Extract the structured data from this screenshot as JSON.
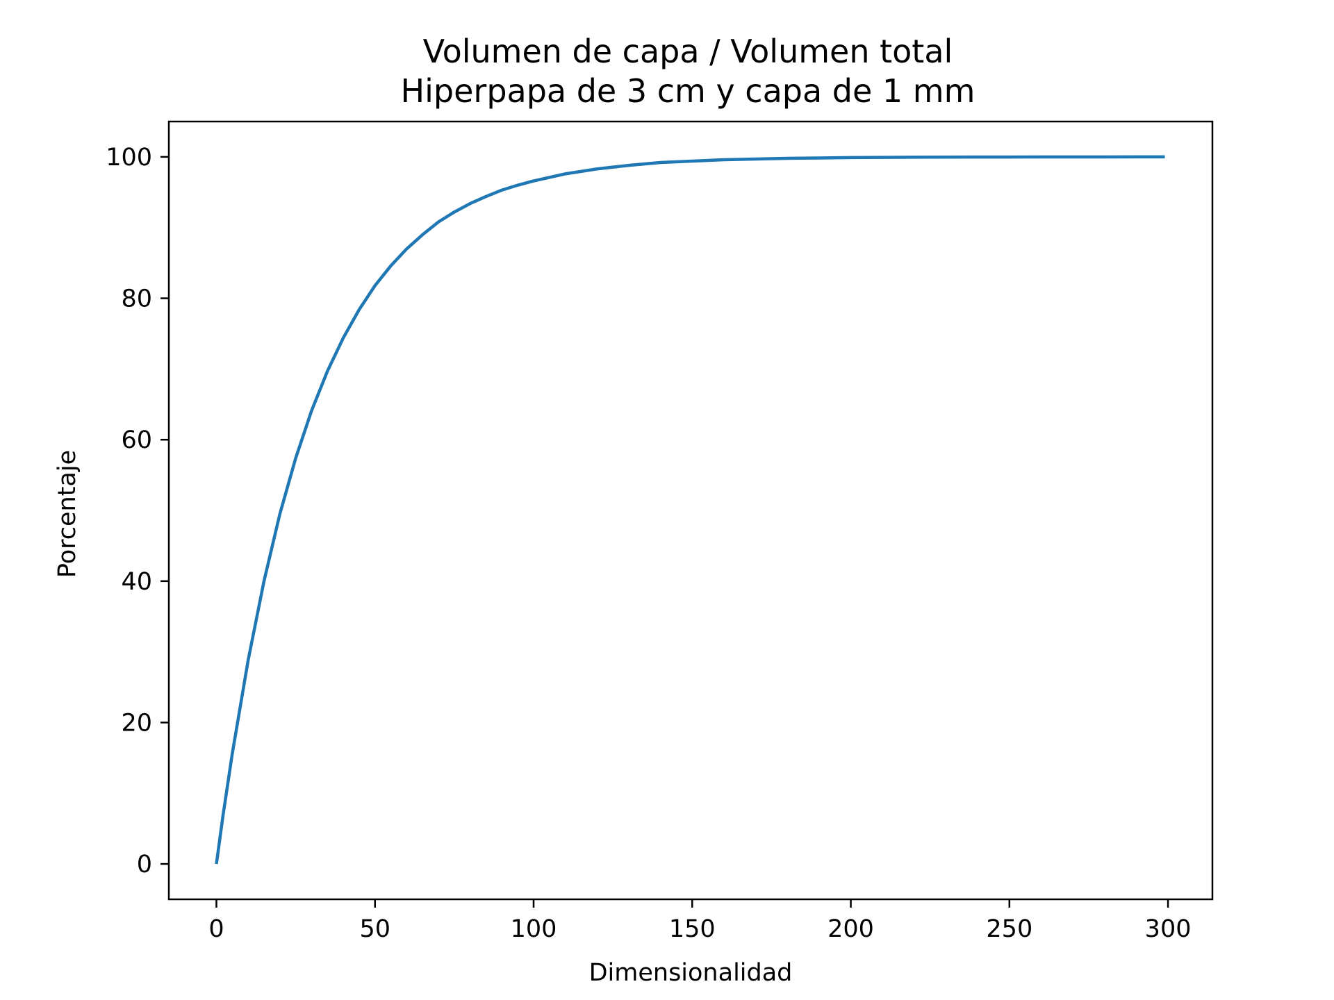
{
  "chart_data": {
    "type": "line",
    "title_lines": [
      "Volumen de capa / Volumen total",
      "Hiperpapa de 3 cm y capa de 1 mm"
    ],
    "xlabel": "Dimensionalidad",
    "ylabel": "Porcentaje",
    "xlim": [
      -15,
      314
    ],
    "ylim": [
      -5,
      105
    ],
    "xticks": [
      0,
      50,
      100,
      150,
      200,
      250,
      300
    ],
    "yticks": [
      0,
      20,
      40,
      60,
      80,
      100
    ],
    "xtick_labels": [
      "0",
      "50",
      "100",
      "150",
      "200",
      "250",
      "300"
    ],
    "ytick_labels": [
      "0",
      "20",
      "40",
      "60",
      "80",
      "100"
    ],
    "grid": false,
    "legend": "none",
    "line_color": "#1f77b4",
    "series": [
      {
        "x": [
          0,
          2,
          5,
          10,
          15,
          20,
          25,
          30,
          35,
          40,
          45,
          50,
          55,
          60,
          65,
          70,
          75,
          80,
          85,
          90,
          95,
          100,
          110,
          120,
          130,
          140,
          150,
          160,
          170,
          180,
          190,
          200,
          210,
          220,
          230,
          240,
          250,
          260,
          270,
          280,
          290,
          299
        ],
        "y": [
          0,
          6.6,
          15.6,
          28.8,
          40.0,
          49.5,
          57.4,
          64.1,
          69.7,
          74.4,
          78.4,
          81.8,
          84.6,
          87.0,
          89.0,
          90.8,
          92.2,
          93.4,
          94.4,
          95.3,
          96.0,
          96.6,
          97.6,
          98.3,
          98.8,
          99.2,
          99.4,
          99.6,
          99.7,
          99.8,
          99.85,
          99.9,
          99.93,
          99.95,
          99.97,
          99.98,
          99.98,
          99.99,
          99.99,
          99.99,
          100.0,
          100.0
        ]
      }
    ]
  }
}
